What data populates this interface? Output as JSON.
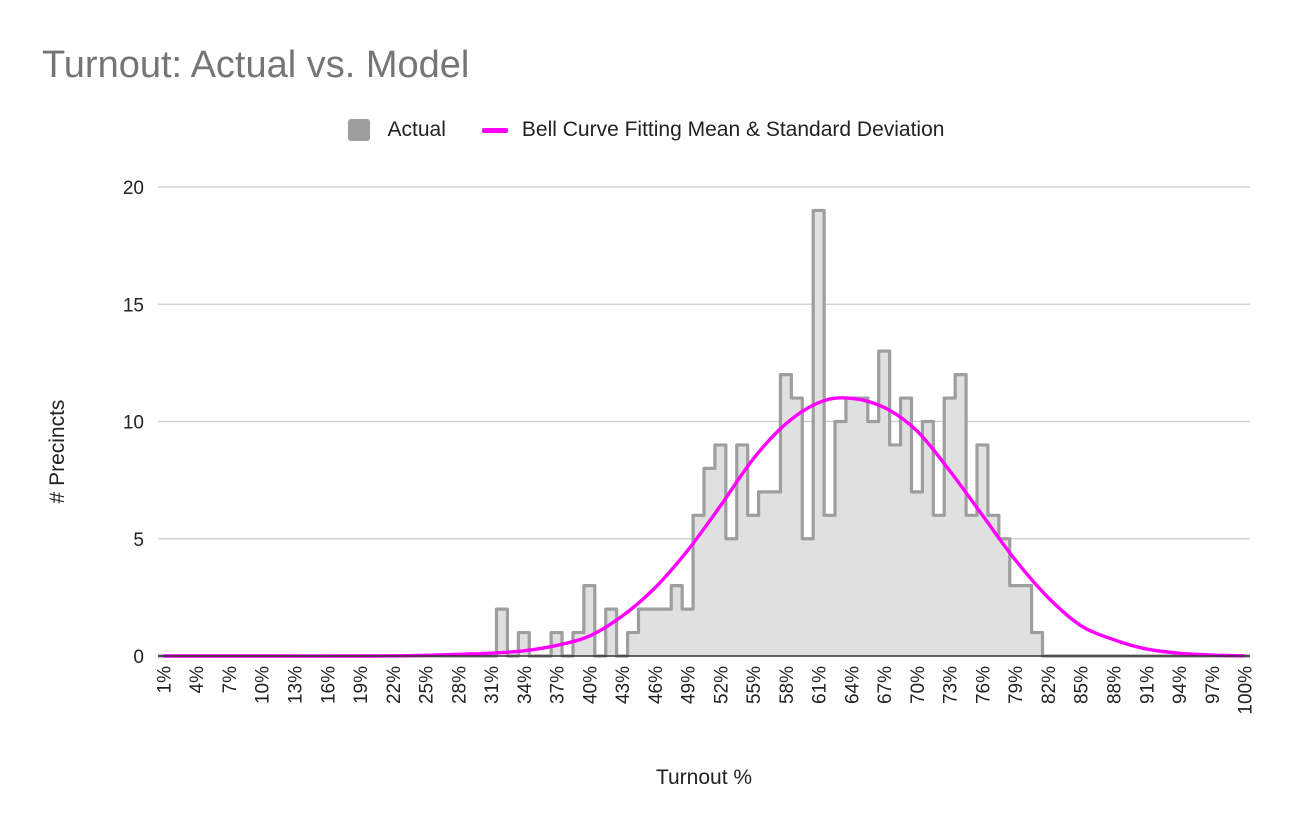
{
  "chart_data": {
    "type": "area",
    "title": "Turnout: Actual vs. Model",
    "xlabel": "Turnout %",
    "ylabel": "# Precincts",
    "ylim": [
      0,
      20
    ],
    "yticks": [
      "0",
      "5",
      "10",
      "15",
      "20"
    ],
    "x_start": 1,
    "x_end": 100,
    "xtick_labels": [
      "1%",
      "4%",
      "7%",
      "10%",
      "13%",
      "16%",
      "19%",
      "22%",
      "25%",
      "28%",
      "31%",
      "34%",
      "37%",
      "40%",
      "43%",
      "46%",
      "49%",
      "52%",
      "55%",
      "58%",
      "61%",
      "64%",
      "67%",
      "70%",
      "73%",
      "76%",
      "79%",
      "82%",
      "85%",
      "88%",
      "91%",
      "94%",
      "97%",
      "100%"
    ],
    "legend_position": "top",
    "grid": true,
    "series": [
      {
        "name": "Actual",
        "style": "step-area",
        "color": "#9e9e9e",
        "x": [
          1,
          2,
          3,
          4,
          5,
          6,
          7,
          8,
          9,
          10,
          11,
          12,
          13,
          14,
          15,
          16,
          17,
          18,
          19,
          20,
          21,
          22,
          23,
          24,
          25,
          26,
          27,
          28,
          29,
          30,
          31,
          32,
          33,
          34,
          35,
          36,
          37,
          38,
          39,
          40,
          41,
          42,
          43,
          44,
          45,
          46,
          47,
          48,
          49,
          50,
          51,
          52,
          53,
          54,
          55,
          56,
          57,
          58,
          59,
          60,
          61,
          62,
          63,
          64,
          65,
          66,
          67,
          68,
          69,
          70,
          71,
          72,
          73,
          74,
          75,
          76,
          77,
          78,
          79,
          80,
          81,
          82,
          83,
          84,
          85,
          86,
          87,
          88,
          89,
          90,
          91,
          92,
          93,
          94,
          95,
          96,
          97,
          98,
          99,
          100
        ],
        "values": [
          0,
          0,
          0,
          0,
          0,
          0,
          0,
          0,
          0,
          0,
          0,
          0,
          0,
          0,
          0,
          0,
          0,
          0,
          0,
          0,
          0,
          0,
          0,
          0,
          0,
          0,
          0,
          0,
          0,
          0,
          0,
          2,
          0,
          1,
          0,
          0,
          1,
          0,
          1,
          3,
          0,
          2,
          0,
          1,
          2,
          2,
          2,
          3,
          2,
          6,
          8,
          9,
          5,
          9,
          6,
          7,
          7,
          12,
          11,
          5,
          19,
          6,
          10,
          11,
          11,
          10,
          13,
          9,
          11,
          7,
          10,
          6,
          11,
          12,
          6,
          9,
          6,
          5,
          3,
          3,
          1,
          0,
          0,
          0,
          0,
          0,
          0,
          0,
          0,
          0,
          0,
          0,
          0,
          0,
          0,
          0,
          0,
          0,
          0,
          0
        ]
      },
      {
        "name": "Bell Curve Fitting Mean & Standard Deviation",
        "style": "smooth-line",
        "color": "#ff00ff",
        "mean": 63.7,
        "stdev": 8.4,
        "peak": 11.0,
        "x": [
          1,
          10,
          20,
          25,
          28,
          31,
          34,
          37,
          40,
          43,
          46,
          49,
          52,
          55,
          58,
          61,
          63.7,
          67,
          70,
          73,
          76,
          79,
          82,
          85,
          88,
          91,
          94,
          97,
          100
        ],
        "values": [
          0,
          0,
          0,
          0.03,
          0.07,
          0.12,
          0.22,
          0.45,
          0.85,
          1.7,
          2.9,
          4.5,
          6.4,
          8.4,
          9.9,
          10.8,
          11.0,
          10.6,
          9.6,
          7.9,
          6.0,
          4.1,
          2.5,
          1.3,
          0.7,
          0.3,
          0.12,
          0.04,
          0.01
        ]
      }
    ]
  }
}
